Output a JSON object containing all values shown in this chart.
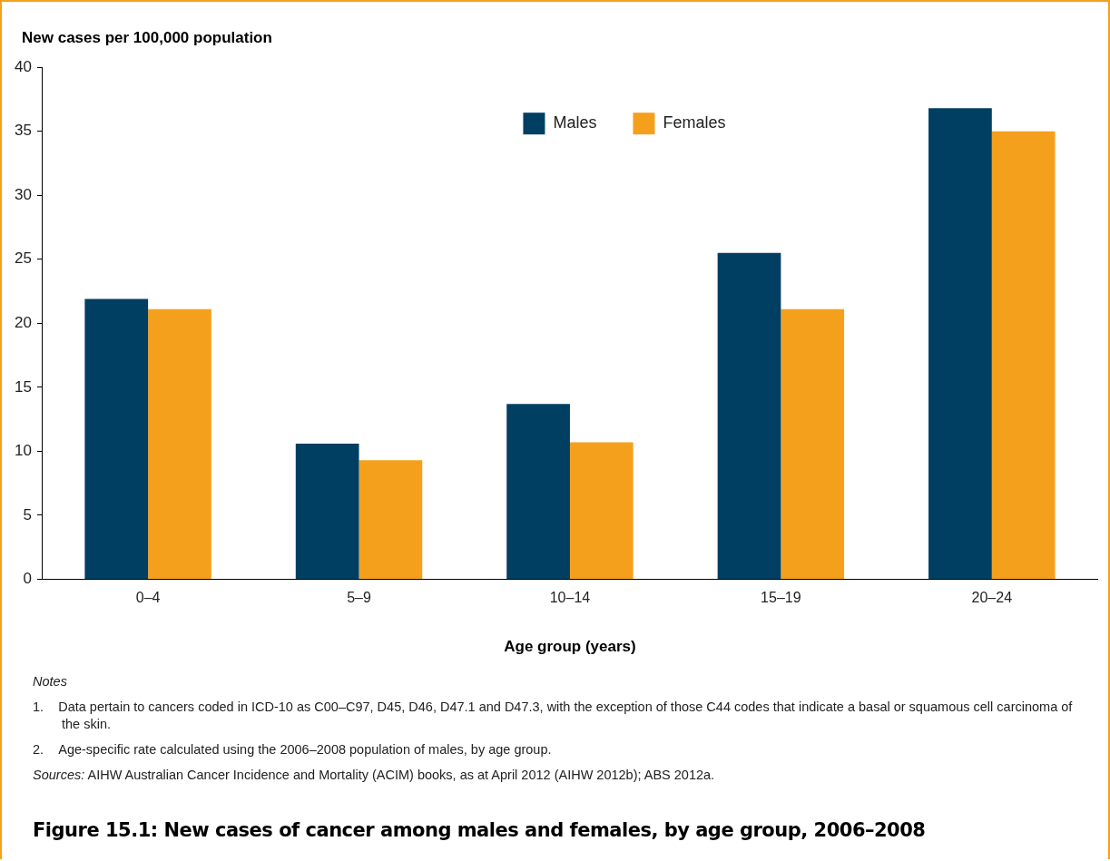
{
  "chart_data": {
    "type": "bar",
    "title": "Figure 15.1: New cases of cancer among males and females, by age group, 2006–2008",
    "xlabel": "Age group (years)",
    "ylabel": "New cases per 100,000 population",
    "categories": [
      "0–4",
      "5–9",
      "10–14",
      "15–19",
      "20–24"
    ],
    "series": [
      {
        "name": "Males",
        "color": "#003f62",
        "values": [
          21.9,
          10.6,
          13.7,
          25.5,
          36.8
        ]
      },
      {
        "name": "Females",
        "color": "#f5a01d",
        "values": [
          21.1,
          9.3,
          10.7,
          21.1,
          35.0
        ]
      }
    ],
    "ylim": [
      0,
      40
    ],
    "yticks": [
      0,
      5,
      10,
      15,
      20,
      25,
      30,
      35,
      40
    ],
    "grid": false,
    "legend": "top",
    "annotations": [
      "Notes",
      "1.    Data pertain to cancers coded in ICD-10 as C00–C97, D45, D46, D47.1 and D47.3, with the exception of those C44 codes that indicate a basal or squamous cell carcinoma of the skin.",
      "2.    Age-specific rate calculated using the 2006–2008 population of males, by age group.",
      "Sources: AIHW Australian Cancer Incidence and Mortality (ACIM) books, as at April 2012 (AIHW 2012b); ABS 2012a."
    ]
  }
}
